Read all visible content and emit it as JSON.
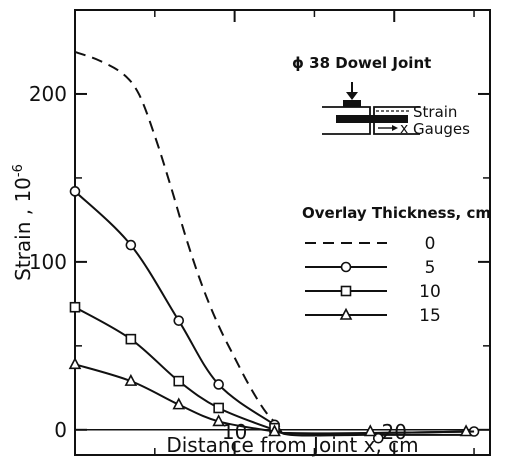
{
  "chart_data": {
    "type": "line",
    "xlabel": "Distance from Joint x, cm",
    "ylabel": "Strain , 10",
    "ylabel_exponent": "-6",
    "xlim": [
      0,
      26
    ],
    "ylim": [
      -15,
      250
    ],
    "x_ticks": [
      10,
      20
    ],
    "y_ticks": [
      0,
      100,
      200
    ],
    "grid": false,
    "inset": {
      "title": "ϕ 38 Dowel Joint",
      "strain_label": "Strain",
      "gauges_label": "Gauges",
      "x_label": "x"
    },
    "legend": {
      "title": "Overlay Thickness, cm",
      "placement": "right",
      "entries": [
        {
          "label": "0",
          "marker": "none",
          "dash": true
        },
        {
          "label": "5",
          "marker": "circle",
          "dash": false
        },
        {
          "label": "10",
          "marker": "square",
          "dash": false
        },
        {
          "label": "15",
          "marker": "triangle",
          "dash": false
        }
      ]
    },
    "series": [
      {
        "name": "0",
        "marker": "none",
        "dash": true,
        "x": [
          0,
          1.5,
          3,
          4,
          5,
          6,
          7,
          8,
          9,
          10,
          11,
          12,
          13
        ],
        "y": [
          225,
          220,
          212,
          200,
          175,
          145,
          113,
          85,
          62,
          43,
          25,
          10,
          0
        ]
      },
      {
        "name": "5",
        "marker": "circle",
        "dash": false,
        "x": [
          0,
          3.5,
          6.5,
          9,
          12.5,
          13.5,
          18,
          19,
          23,
          25
        ],
        "y": [
          142,
          110,
          65,
          27,
          3,
          -3,
          -3,
          -3,
          -3,
          -3
        ],
        "marker_x": [
          0,
          3.5,
          6.5,
          9,
          12.5,
          19,
          25
        ],
        "marker_y": [
          142,
          110,
          65,
          27,
          3,
          -5,
          -1
        ]
      },
      {
        "name": "10",
        "marker": "square",
        "dash": false,
        "x": [
          0,
          3.5,
          6.5,
          9,
          12.5,
          13.5,
          18,
          25
        ],
        "y": [
          73,
          54,
          29,
          13,
          0,
          -2,
          -2,
          -1
        ],
        "marker_x": [
          0,
          3.5,
          6.5,
          9,
          12.5
        ],
        "marker_y": [
          73,
          54,
          29,
          13,
          1
        ]
      },
      {
        "name": "15",
        "marker": "triangle",
        "dash": false,
        "x": [
          0,
          3.5,
          6.5,
          9,
          12.5,
          13.5,
          18,
          25
        ],
        "y": [
          39,
          29,
          15,
          5,
          -1,
          -2,
          -2,
          -1
        ],
        "marker_x": [
          0,
          3.5,
          6.5,
          9,
          12.5,
          18.5,
          24.5
        ],
        "marker_y": [
          39,
          29,
          15,
          5,
          -1,
          -1,
          -1
        ]
      }
    ]
  }
}
